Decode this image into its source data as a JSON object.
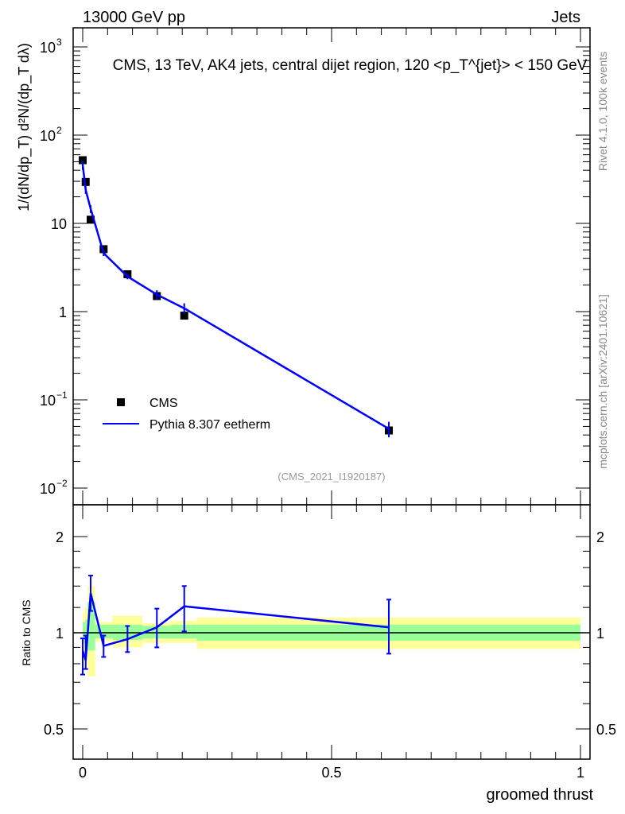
{
  "header": {
    "left": "13000 GeV pp",
    "right": "Jets"
  },
  "side": {
    "rivet": "Rivet 4.1.0,  100k events",
    "mcplots": "mcplots.cern.ch [arXiv:2401.10621]"
  },
  "colors": {
    "data": "#000000",
    "mc": "#0000ff",
    "stat_band": "#99ff99",
    "total_band": "#ffff99"
  },
  "chart_data": [
    {
      "type": "scatter",
      "title": "CMS, 13 TeV, AK4 jets, central dijet region, 120 <p_T^{jet}> < 150 GeV",
      "watermark": "(CMS_2021_I1920187)",
      "ylabel": "1/(dN/dp_T) d²N/(dp_T dλ)",
      "yscale": "log",
      "ylim": [
        0.008,
        1600
      ],
      "xlim": [
        -0.02,
        1.02
      ],
      "ytick_labels": [
        "10^-2",
        "10^-1",
        "1",
        "10",
        "10^2",
        "10^3"
      ],
      "legend": {
        "placement": "bottom-left",
        "entries": [
          "CMS",
          "Pythia 8.307 eetherm"
        ]
      },
      "series": [
        {
          "name": "CMS",
          "x": [
            0.0,
            0.006,
            0.016,
            0.042,
            0.09,
            0.149,
            0.204,
            0.615
          ],
          "y": [
            52,
            29.5,
            11,
            5.1,
            2.65,
            1.5,
            0.9,
            0.045
          ]
        },
        {
          "name": "Pythia 8.307 eetherm",
          "x": [
            0.0,
            0.006,
            0.016,
            0.042,
            0.09,
            0.149,
            0.204,
            0.615
          ],
          "y": [
            46,
            24,
            14.6,
            4.6,
            2.5,
            1.56,
            1.09,
            0.047
          ],
          "err_rel": [
            0.12,
            0.1,
            0.1,
            0.07,
            0.07,
            0.12,
            0.14,
            0.2
          ]
        }
      ]
    },
    {
      "type": "line",
      "ylabel": "Ratio to CMS",
      "xlabel": "groomed thrust",
      "yscale": "log",
      "ylim": [
        0.4,
        2.3
      ],
      "xlim": [
        -0.02,
        1.02
      ],
      "ytick_labels": [
        "0.5",
        "1",
        "2"
      ],
      "xtick_labels": [
        "0",
        "0.5",
        "1"
      ],
      "ratio": {
        "x": [
          0.0,
          0.006,
          0.016,
          0.042,
          0.09,
          0.149,
          0.204,
          0.615
        ],
        "y": [
          0.88,
          0.82,
          1.33,
          0.91,
          0.955,
          1.04,
          1.21,
          1.04
        ],
        "err_lo": [
          0.74,
          0.77,
          1.17,
          0.84,
          0.87,
          0.9,
          1.01,
          0.86
        ],
        "err_hi": [
          0.96,
          0.98,
          1.51,
          0.98,
          1.05,
          1.19,
          1.4,
          1.27
        ]
      },
      "bins": [
        0,
        0.005,
        0.01,
        0.025,
        0.06,
        0.12,
        0.176,
        0.229,
        1.0
      ],
      "stat_band": [
        [
          0.93,
          1.08
        ],
        [
          0.87,
          1.1
        ],
        [
          0.88,
          1.25
        ],
        [
          0.96,
          1.06
        ],
        [
          0.95,
          1.06
        ],
        [
          0.96,
          1.05
        ],
        [
          0.96,
          1.06
        ],
        [
          0.945,
          1.06
        ]
      ],
      "total_band": [
        [
          0.88,
          1.16
        ],
        [
          0.8,
          1.2
        ],
        [
          0.73,
          1.4
        ],
        [
          0.94,
          1.08
        ],
        [
          0.9,
          1.13
        ],
        [
          0.93,
          1.07
        ],
        [
          0.93,
          1.09
        ],
        [
          0.89,
          1.115
        ]
      ]
    }
  ]
}
